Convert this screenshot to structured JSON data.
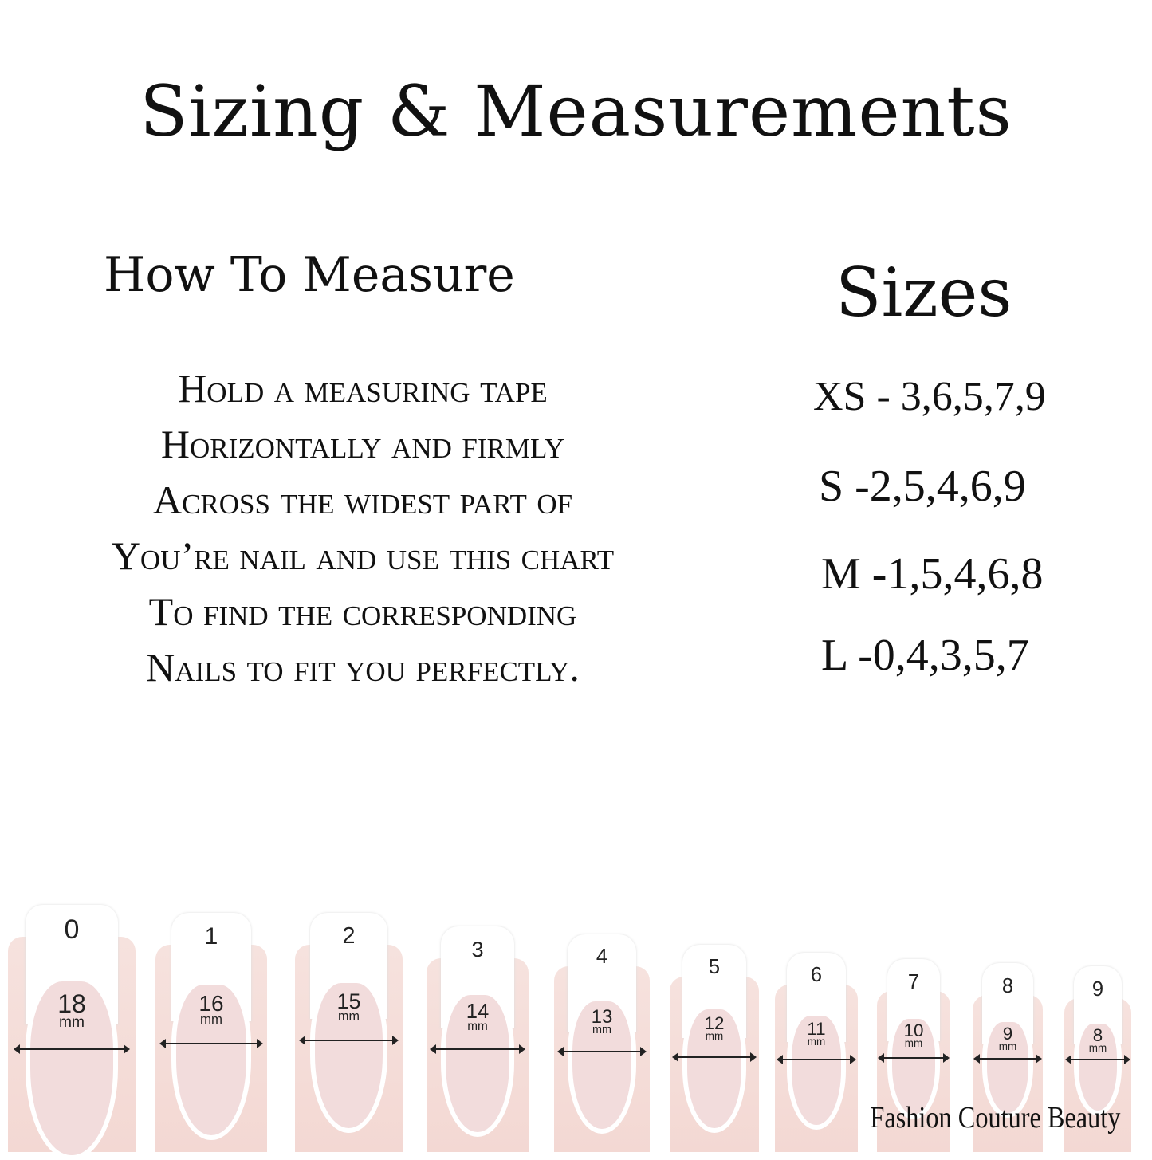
{
  "title": "Sizing & Measurements",
  "how_to": {
    "heading": "How To Measure",
    "lines": [
      "Hold a measuring tape",
      "Horizontally and firmly",
      "Across the widest part of",
      "You’re nail and use this chart",
      "To find the corresponding",
      "Nails to fit you perfectly."
    ]
  },
  "sizes": {
    "heading": "Sizes",
    "rows": [
      "XS - 3,6,5,7,9",
      "S -2,5,4,6,9",
      "M -1,5,4,6,8",
      "L -0,4,3,5,7"
    ]
  },
  "nails": [
    {
      "number": "0",
      "width": "18",
      "unit": "mm"
    },
    {
      "number": "1",
      "width": "16",
      "unit": "mm"
    },
    {
      "number": "2",
      "width": "15",
      "unit": "mm"
    },
    {
      "number": "3",
      "width": "14",
      "unit": "mm"
    },
    {
      "number": "4",
      "width": "13",
      "unit": "mm"
    },
    {
      "number": "5",
      "width": "12",
      "unit": "mm"
    },
    {
      "number": "6",
      "width": "11",
      "unit": "mm"
    },
    {
      "number": "7",
      "width": "10",
      "unit": "mm"
    },
    {
      "number": "8",
      "width": "9",
      "unit": "mm"
    },
    {
      "number": "9",
      "width": "8",
      "unit": "mm"
    }
  ],
  "brand": "Fashion Couture Beauty"
}
